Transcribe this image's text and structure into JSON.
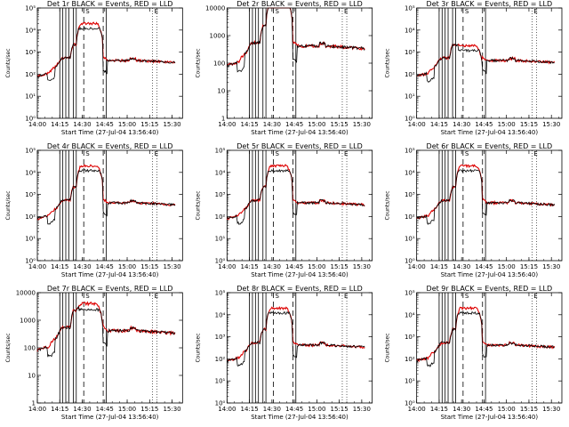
{
  "colors": {
    "events": "#000000",
    "lld": "#dd0000",
    "background": "#ffffff"
  },
  "chart_data": [
    {
      "type": "line",
      "title": "Det 1r BLACK = Events, RED = LLD",
      "xlabel": "Start Time (27-Jul-04 13:56:40)",
      "ylabel": "Counts/sec",
      "y_scale": "log",
      "ylim": [
        1,
        100000
      ],
      "y_tick_values": [
        1,
        10,
        100,
        1000,
        10000,
        100000
      ],
      "y_tick_labels": [
        "10⁰",
        "10¹",
        "10²",
        "10³",
        "10⁴",
        "10⁵"
      ],
      "xlim": [
        "14:00",
        "15:37"
      ],
      "x_tick_labels": [
        "14:00",
        "14:15",
        "14:30",
        "14:45",
        "15:00",
        "15:15",
        "15:30"
      ],
      "flare_level": 20000,
      "time_markers_solid": [
        "14:15",
        "14:17",
        "14:19",
        "14:21",
        "14:24",
        "14:26",
        "14:46"
      ],
      "time_markers_dashed": [
        "14:31",
        "14:44"
      ],
      "time_markers_dotted": [
        "15:17",
        "15:20"
      ],
      "letter_markers": [
        "S",
        "E"
      ],
      "series": [
        {
          "name": "Events"
        },
        {
          "name": "LLD"
        }
      ]
    },
    {
      "type": "line",
      "title": "Det 2r BLACK = Events, RED = LLD",
      "xlabel": "Start Time (27-Jul-04 13:56:40)",
      "ylabel": "Counts/sec",
      "y_scale": "log",
      "ylim": [
        1,
        10000
      ],
      "y_tick_values": [
        1,
        10,
        100,
        1000,
        10000
      ],
      "y_tick_labels": [
        "1",
        "10",
        "100",
        "1000",
        "10000"
      ],
      "xlim": [
        "14:00",
        "15:37"
      ],
      "x_tick_labels": [
        "14:00",
        "14:15",
        "14:30",
        "14:45",
        "15:00",
        "15:15",
        "15:30"
      ],
      "flare_level": 20000,
      "time_markers_solid": [
        "14:15",
        "14:17",
        "14:19",
        "14:21",
        "14:24",
        "14:26",
        "14:46"
      ],
      "time_markers_dashed": [
        "14:31",
        "14:44"
      ],
      "time_markers_dotted": [
        "15:17",
        "15:20"
      ],
      "letter_markers": [
        "S",
        "E"
      ],
      "series": [
        {
          "name": "Events"
        },
        {
          "name": "LLD"
        }
      ]
    },
    {
      "type": "line",
      "title": "Det 3r BLACK = Events, RED = LLD",
      "xlabel": "Start Time (27-Jul-04 13:56:40)",
      "ylabel": "Counts/sec",
      "y_scale": "log",
      "ylim": [
        1,
        100000
      ],
      "y_tick_values": [
        1,
        10,
        100,
        1000,
        10000,
        100000
      ],
      "y_tick_labels": [
        "10⁰",
        "10¹",
        "10²",
        "10³",
        "10⁴",
        "10⁵"
      ],
      "xlim": [
        "14:00",
        "15:37"
      ],
      "x_tick_labels": [
        "14:00",
        "14:15",
        "14:30",
        "14:45",
        "15:00",
        "15:15",
        "15:30"
      ],
      "flare_level": 2000,
      "time_markers_solid": [
        "14:15",
        "14:17",
        "14:19",
        "14:21",
        "14:24",
        "14:26",
        "14:46"
      ],
      "time_markers_dashed": [
        "14:31",
        "14:44"
      ],
      "time_markers_dotted": [
        "15:17",
        "15:20"
      ],
      "letter_markers": [
        "S",
        "E"
      ],
      "series": [
        {
          "name": "Events"
        },
        {
          "name": "LLD"
        }
      ]
    },
    {
      "type": "line",
      "title": "Det 4r BLACK = Events, RED = LLD",
      "xlabel": "Start Time (27-Jul-04 13:56:40)",
      "ylabel": "Counts/sec",
      "y_scale": "log",
      "ylim": [
        1,
        100000
      ],
      "y_tick_values": [
        1,
        10,
        100,
        1000,
        10000,
        100000
      ],
      "y_tick_labels": [
        "10⁰",
        "10¹",
        "10²",
        "10³",
        "10⁴",
        "10⁵"
      ],
      "xlim": [
        "14:00",
        "15:37"
      ],
      "x_tick_labels": [
        "14:00",
        "14:15",
        "14:30",
        "14:45",
        "15:00",
        "15:15",
        "15:30"
      ],
      "flare_level": 20000,
      "time_markers_solid": [
        "14:15",
        "14:17",
        "14:19",
        "14:21",
        "14:24",
        "14:26",
        "14:46"
      ],
      "time_markers_dashed": [
        "14:31",
        "14:44"
      ],
      "time_markers_dotted": [
        "15:17",
        "15:20"
      ],
      "letter_markers": [
        "S",
        "E"
      ],
      "series": [
        {
          "name": "Events"
        },
        {
          "name": "LLD"
        }
      ]
    },
    {
      "type": "line",
      "title": "Det 5r BLACK = Events, RED = LLD",
      "xlabel": "Start Time (27-Jul-04 13:56:40)",
      "ylabel": "Counts/sec",
      "y_scale": "log",
      "ylim": [
        1,
        100000
      ],
      "y_tick_values": [
        1,
        10,
        100,
        1000,
        10000,
        100000
      ],
      "y_tick_labels": [
        "10⁰",
        "10¹",
        "10²",
        "10³",
        "10⁴",
        "10⁵"
      ],
      "xlim": [
        "14:00",
        "15:37"
      ],
      "x_tick_labels": [
        "14:00",
        "14:15",
        "14:30",
        "14:45",
        "15:00",
        "15:15",
        "15:30"
      ],
      "flare_level": 20000,
      "time_markers_solid": [
        "14:15",
        "14:17",
        "14:19",
        "14:21",
        "14:24",
        "14:26",
        "14:46"
      ],
      "time_markers_dashed": [
        "14:31",
        "14:44"
      ],
      "time_markers_dotted": [
        "15:17",
        "15:20"
      ],
      "letter_markers": [
        "S",
        "E"
      ],
      "series": [
        {
          "name": "Events"
        },
        {
          "name": "LLD"
        }
      ]
    },
    {
      "type": "line",
      "title": "Det 6r BLACK = Events, RED = LLD",
      "xlabel": "Start Time (27-Jul-04 13:56:40)",
      "ylabel": "Counts/sec",
      "y_scale": "log",
      "ylim": [
        1,
        100000
      ],
      "y_tick_values": [
        1,
        10,
        100,
        1000,
        10000,
        100000
      ],
      "y_tick_labels": [
        "10⁰",
        "10¹",
        "10²",
        "10³",
        "10⁴",
        "10⁵"
      ],
      "xlim": [
        "14:00",
        "15:37"
      ],
      "x_tick_labels": [
        "14:00",
        "14:15",
        "14:30",
        "14:45",
        "15:00",
        "15:15",
        "15:30"
      ],
      "flare_level": 20000,
      "time_markers_solid": [
        "14:15",
        "14:17",
        "14:19",
        "14:21",
        "14:24",
        "14:26",
        "14:46"
      ],
      "time_markers_dashed": [
        "14:31",
        "14:44"
      ],
      "time_markers_dotted": [
        "15:17",
        "15:20"
      ],
      "letter_markers": [
        "S",
        "E"
      ],
      "series": [
        {
          "name": "Events"
        },
        {
          "name": "LLD"
        }
      ]
    },
    {
      "type": "line",
      "title": "Det 7r BLACK = Events, RED = LLD",
      "xlabel": "Start Time (27-Jul-04 13:56:40)",
      "ylabel": "Counts/sec",
      "y_scale": "log",
      "ylim": [
        1,
        10000
      ],
      "y_tick_values": [
        1,
        10,
        100,
        1000,
        10000
      ],
      "y_tick_labels": [
        "1",
        "10",
        "100",
        "1000",
        "10000"
      ],
      "xlim": [
        "14:00",
        "15:37"
      ],
      "x_tick_labels": [
        "14:00",
        "14:15",
        "14:30",
        "14:45",
        "15:00",
        "15:15",
        "15:30"
      ],
      "flare_level": 4000,
      "time_markers_solid": [
        "14:15",
        "14:17",
        "14:19",
        "14:21",
        "14:24",
        "14:26",
        "14:46"
      ],
      "time_markers_dashed": [
        "14:31",
        "14:44"
      ],
      "time_markers_dotted": [
        "15:17",
        "15:20"
      ],
      "letter_markers": [
        "S",
        "E"
      ],
      "series": [
        {
          "name": "Events"
        },
        {
          "name": "LLD"
        }
      ]
    },
    {
      "type": "line",
      "title": "Det 8r BLACK = Events, RED = LLD",
      "xlabel": "Start Time (27-Jul-04 13:56:40)",
      "ylabel": "Counts/sec",
      "y_scale": "log",
      "ylim": [
        1,
        100000
      ],
      "y_tick_values": [
        1,
        10,
        100,
        1000,
        10000,
        100000
      ],
      "y_tick_labels": [
        "10⁰",
        "10¹",
        "10²",
        "10³",
        "10⁴",
        "10⁵"
      ],
      "xlim": [
        "14:00",
        "15:37"
      ],
      "x_tick_labels": [
        "14:00",
        "14:15",
        "14:30",
        "14:45",
        "15:00",
        "15:15",
        "15:30"
      ],
      "flare_level": 20000,
      "time_markers_solid": [
        "14:15",
        "14:17",
        "14:19",
        "14:21",
        "14:24",
        "14:26",
        "14:46"
      ],
      "time_markers_dashed": [
        "14:31",
        "14:44"
      ],
      "time_markers_dotted": [
        "15:17",
        "15:20"
      ],
      "letter_markers": [
        "S",
        "E"
      ],
      "series": [
        {
          "name": "Events"
        },
        {
          "name": "LLD"
        }
      ]
    },
    {
      "type": "line",
      "title": "Det 9r BLACK = Events, RED = LLD",
      "xlabel": "Start Time (27-Jul-04 13:56:40)",
      "ylabel": "Counts/sec",
      "y_scale": "log",
      "ylim": [
        1,
        100000
      ],
      "y_tick_values": [
        1,
        10,
        100,
        1000,
        10000,
        100000
      ],
      "y_tick_labels": [
        "10⁰",
        "10¹",
        "10²",
        "10³",
        "10⁴",
        "10⁵"
      ],
      "xlim": [
        "14:00",
        "15:37"
      ],
      "x_tick_labels": [
        "14:00",
        "14:15",
        "14:30",
        "14:45",
        "15:00",
        "15:15",
        "15:30"
      ],
      "flare_level": 20000,
      "time_markers_solid": [
        "14:15",
        "14:17",
        "14:19",
        "14:21",
        "14:24",
        "14:26",
        "14:46"
      ],
      "time_markers_dashed": [
        "14:31",
        "14:44"
      ],
      "time_markers_dotted": [
        "15:17",
        "15:20"
      ],
      "letter_markers": [
        "S",
        "E"
      ],
      "series": [
        {
          "name": "Events"
        },
        {
          "name": "LLD"
        }
      ]
    }
  ]
}
